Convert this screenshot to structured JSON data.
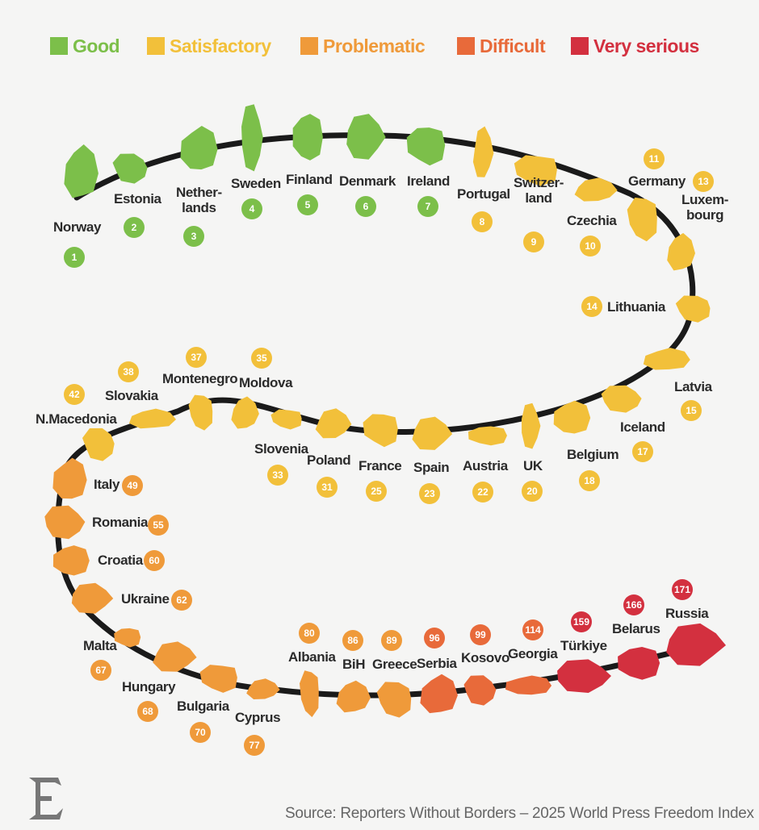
{
  "legend": [
    {
      "label": "Good",
      "color": "#7cbf4a"
    },
    {
      "label": "Satisfactory",
      "color": "#f2c03a"
    },
    {
      "label": "Problematic",
      "color": "#ef9a3a"
    },
    {
      "label": "Difficult",
      "color": "#e86a3a"
    },
    {
      "label": "Very serious",
      "color": "#d3303f"
    }
  ],
  "countries": [
    {
      "name": "Norway",
      "rank": "1",
      "category": "Good"
    },
    {
      "name": "Estonia",
      "rank": "2",
      "category": "Good"
    },
    {
      "name": "Nether-\nlands",
      "rank": "3",
      "category": "Good"
    },
    {
      "name": "Sweden",
      "rank": "4",
      "category": "Good"
    },
    {
      "name": "Finland",
      "rank": "5",
      "category": "Good"
    },
    {
      "name": "Denmark",
      "rank": "6",
      "category": "Good"
    },
    {
      "name": "Ireland",
      "rank": "7",
      "category": "Good"
    },
    {
      "name": "Portugal",
      "rank": "8",
      "category": "Satisfactory"
    },
    {
      "name": "Switzer-\nland",
      "rank": "9",
      "category": "Satisfactory"
    },
    {
      "name": "Czechia",
      "rank": "10",
      "category": "Satisfactory"
    },
    {
      "name": "Germany",
      "rank": "11",
      "category": "Satisfactory"
    },
    {
      "name": "Luxem-\nbourg",
      "rank": "13",
      "category": "Satisfactory"
    },
    {
      "name": "Lithuania",
      "rank": "14",
      "category": "Satisfactory"
    },
    {
      "name": "Latvia",
      "rank": "15",
      "category": "Satisfactory"
    },
    {
      "name": "Iceland",
      "rank": "17",
      "category": "Satisfactory"
    },
    {
      "name": "Belgium",
      "rank": "18",
      "category": "Satisfactory"
    },
    {
      "name": "UK",
      "rank": "20",
      "category": "Satisfactory"
    },
    {
      "name": "Austria",
      "rank": "22",
      "category": "Satisfactory"
    },
    {
      "name": "Spain",
      "rank": "23",
      "category": "Satisfactory"
    },
    {
      "name": "France",
      "rank": "25",
      "category": "Satisfactory"
    },
    {
      "name": "Poland",
      "rank": "31",
      "category": "Satisfactory"
    },
    {
      "name": "Slovenia",
      "rank": "33",
      "category": "Satisfactory"
    },
    {
      "name": "Moldova",
      "rank": "35",
      "category": "Satisfactory"
    },
    {
      "name": "Montenegro",
      "rank": "37",
      "category": "Satisfactory"
    },
    {
      "name": "Slovakia",
      "rank": "38",
      "category": "Satisfactory"
    },
    {
      "name": "N.Macedonia",
      "rank": "42",
      "category": "Satisfactory"
    },
    {
      "name": "Italy",
      "rank": "49",
      "category": "Problematic"
    },
    {
      "name": "Romania",
      "rank": "55",
      "category": "Problematic"
    },
    {
      "name": "Croatia",
      "rank": "60",
      "category": "Problematic"
    },
    {
      "name": "Ukraine",
      "rank": "62",
      "category": "Problematic"
    },
    {
      "name": "Malta",
      "rank": "67",
      "category": "Problematic"
    },
    {
      "name": "Hungary",
      "rank": "68",
      "category": "Problematic"
    },
    {
      "name": "Bulgaria",
      "rank": "70",
      "category": "Problematic"
    },
    {
      "name": "Cyprus",
      "rank": "77",
      "category": "Problematic"
    },
    {
      "name": "Albania",
      "rank": "80",
      "category": "Problematic"
    },
    {
      "name": "BiH",
      "rank": "86",
      "category": "Problematic"
    },
    {
      "name": "Greece",
      "rank": "89",
      "category": "Problematic"
    },
    {
      "name": "Serbia",
      "rank": "96",
      "category": "Difficult"
    },
    {
      "name": "Kosovo",
      "rank": "99",
      "category": "Difficult"
    },
    {
      "name": "Georgia",
      "rank": "114",
      "category": "Difficult"
    },
    {
      "name": "Türkiye",
      "rank": "159",
      "category": "Very serious"
    },
    {
      "name": "Belarus",
      "rank": "166",
      "category": "Very serious"
    },
    {
      "name": "Russia",
      "rank": "171",
      "category": "Very serious"
    }
  ],
  "track_color": "#1a1a1a",
  "logo": {
    "letter": "E",
    "color": "#777777"
  },
  "source": "Source: Reporters Without Borders – 2025 World Press Freedom Index"
}
